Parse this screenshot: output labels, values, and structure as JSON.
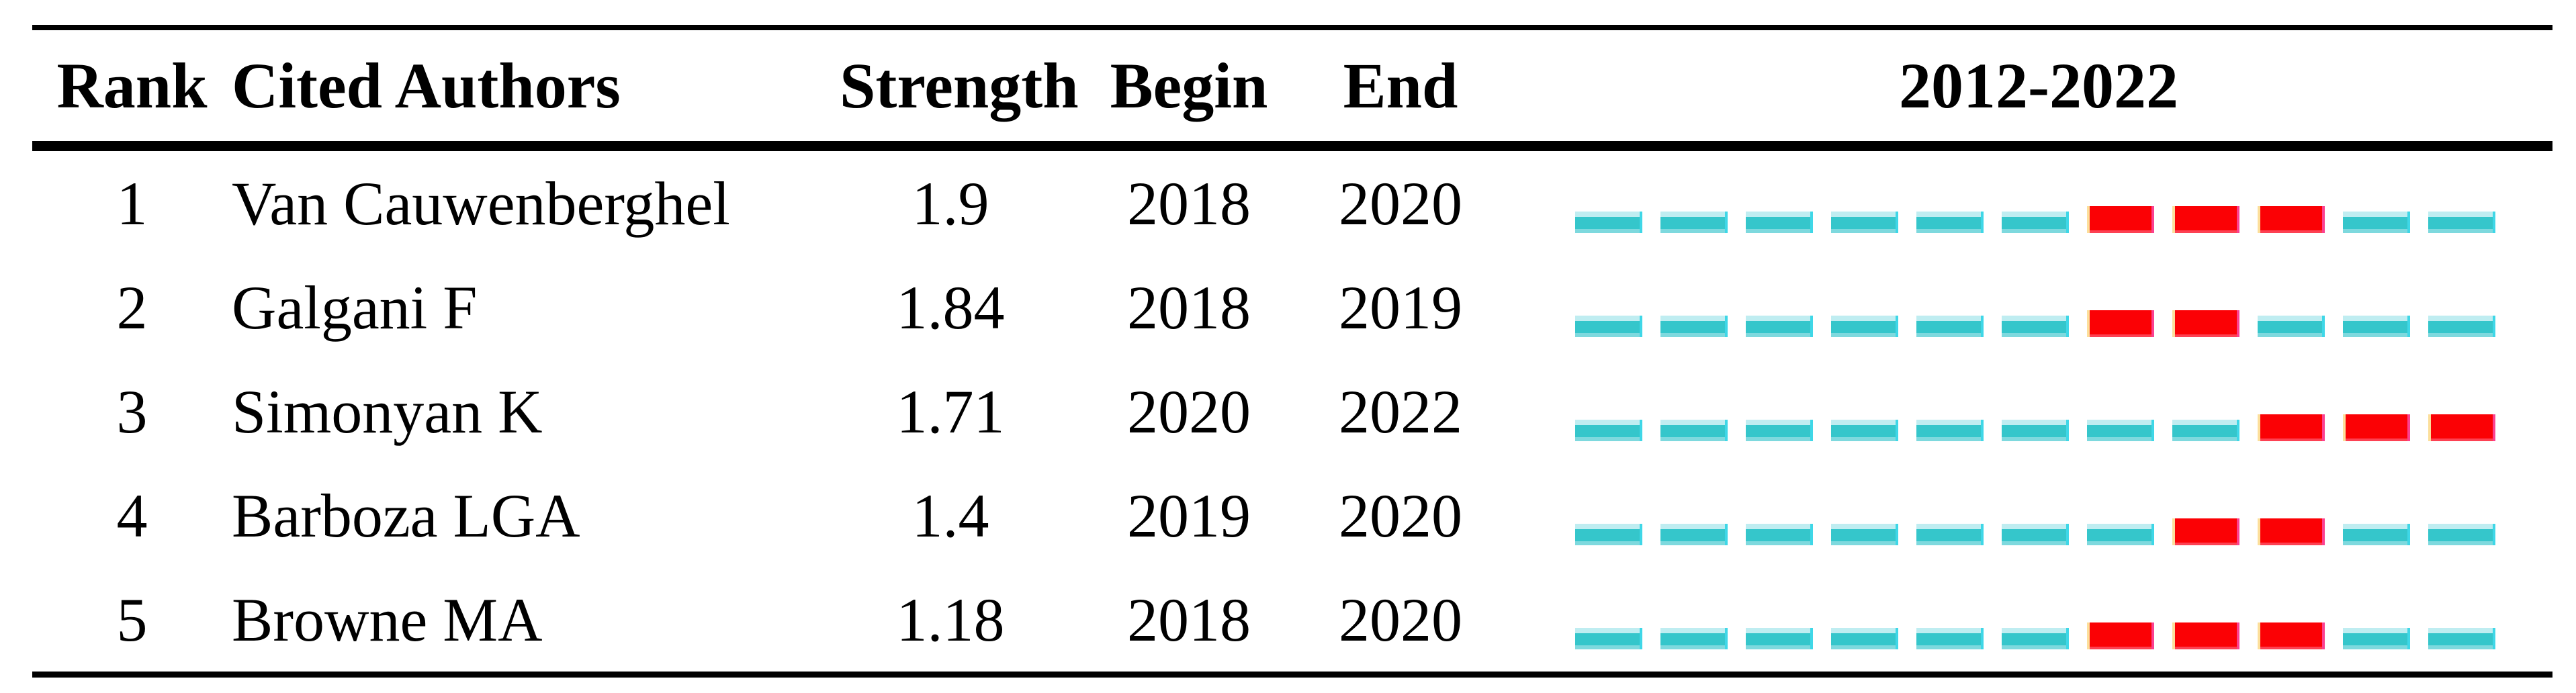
{
  "table": {
    "headers": {
      "rank": "Rank",
      "cited_authors": "Cited Authors",
      "strength": "Strength",
      "begin": "Begin",
      "end": "End",
      "period": "2012-2022"
    },
    "rows": [
      {
        "rank": "1",
        "author": "Van Cauwenberghel",
        "strength": "1.9",
        "begin": "2018",
        "end": "2020"
      },
      {
        "rank": "2",
        "author": "Galgani F",
        "strength": "1.84",
        "begin": "2018",
        "end": "2019"
      },
      {
        "rank": "3",
        "author": "Simonyan K",
        "strength": "1.71",
        "begin": "2020",
        "end": "2022"
      },
      {
        "rank": "4",
        "author": "Barboza LGA",
        "strength": "1.4",
        "begin": "2019",
        "end": "2020"
      },
      {
        "rank": "5",
        "author": "Browne MA",
        "strength": "1.18",
        "begin": "2018",
        "end": "2020"
      }
    ]
  },
  "timeline": {
    "start_year": 2012,
    "end_year": 2022,
    "colors": {
      "base_dash": "#35c6cb",
      "base_dash_highlight": "#bfedf1",
      "burst_dash": "#fb0105"
    }
  },
  "chart_data": {
    "type": "table",
    "title": "2012-2022",
    "columns": [
      "Rank",
      "Cited Authors",
      "Strength",
      "Begin",
      "End",
      "2012-2022"
    ],
    "rows": [
      {
        "rank": 1,
        "cited_author": "Van Cauwenberghel",
        "strength": 1.9,
        "begin": 2018,
        "end": 2020,
        "burst_years": [
          2018,
          2019,
          2020
        ]
      },
      {
        "rank": 2,
        "cited_author": "Galgani F",
        "strength": 1.84,
        "begin": 2018,
        "end": 2019,
        "burst_years": [
          2018,
          2019
        ]
      },
      {
        "rank": 3,
        "cited_author": "Simonyan K",
        "strength": 1.71,
        "begin": 2020,
        "end": 2022,
        "burst_years": [
          2020,
          2021,
          2022
        ]
      },
      {
        "rank": 4,
        "cited_author": "Barboza LGA",
        "strength": 1.4,
        "begin": 2019,
        "end": 2020,
        "burst_years": [
          2019,
          2020
        ]
      },
      {
        "rank": 5,
        "cited_author": "Browne MA",
        "strength": 1.18,
        "begin": 2018,
        "end": 2020,
        "burst_years": [
          2018,
          2019,
          2020
        ]
      }
    ],
    "timeline_axis": {
      "range": [
        2012,
        2022
      ],
      "segments_per_row": 11
    },
    "legend": {
      "base_color_meaning": "year within 2012-2022 span",
      "burst_color_meaning": "citation burst years (Begin to End)"
    }
  }
}
